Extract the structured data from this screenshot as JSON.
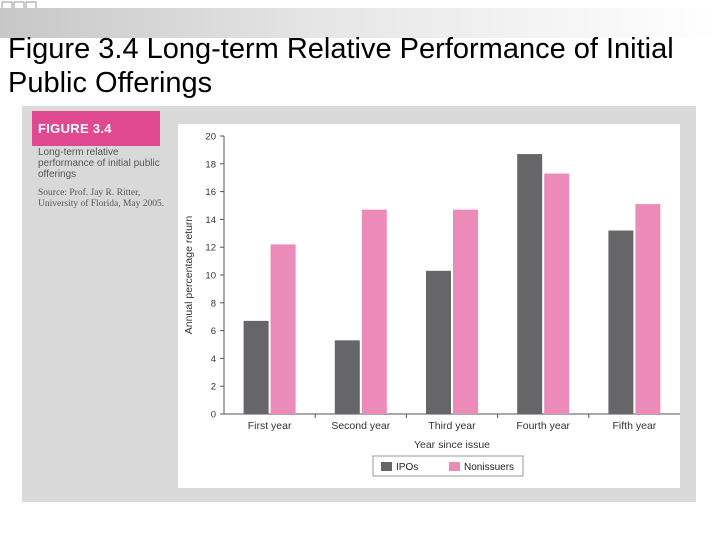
{
  "slide": {
    "title": "Figure 3.4 Long-term Relative Performance of Initial Public Offerings"
  },
  "figure": {
    "label": "FIGURE 3.4",
    "caption": "Long-term relative performance of initial public offerings",
    "source": "Source: Prof. Jay R. Ritter, University of Florida, May 2005."
  },
  "colors": {
    "ipos": "#666669",
    "nonissuers": "#ec8ab9",
    "label_block": "#e0488f",
    "panel": "#d9d9d9"
  },
  "chart_data": {
    "type": "bar",
    "title": "",
    "xlabel": "Year since issue",
    "ylabel": "Annual percentage return",
    "categories": [
      "First year",
      "Second year",
      "Third year",
      "Fourth year",
      "Fifth year"
    ],
    "series": [
      {
        "name": "IPOs",
        "values": [
          6.7,
          5.3,
          10.3,
          18.7,
          13.2
        ]
      },
      {
        "name": "Nonissuers",
        "values": [
          12.2,
          14.7,
          14.7,
          17.3,
          15.1
        ]
      }
    ],
    "ylim": [
      0,
      20
    ],
    "yticks": [
      0,
      2,
      4,
      6,
      8,
      10,
      12,
      14,
      16,
      18,
      20
    ],
    "grid": false,
    "legend_position": "bottom"
  }
}
